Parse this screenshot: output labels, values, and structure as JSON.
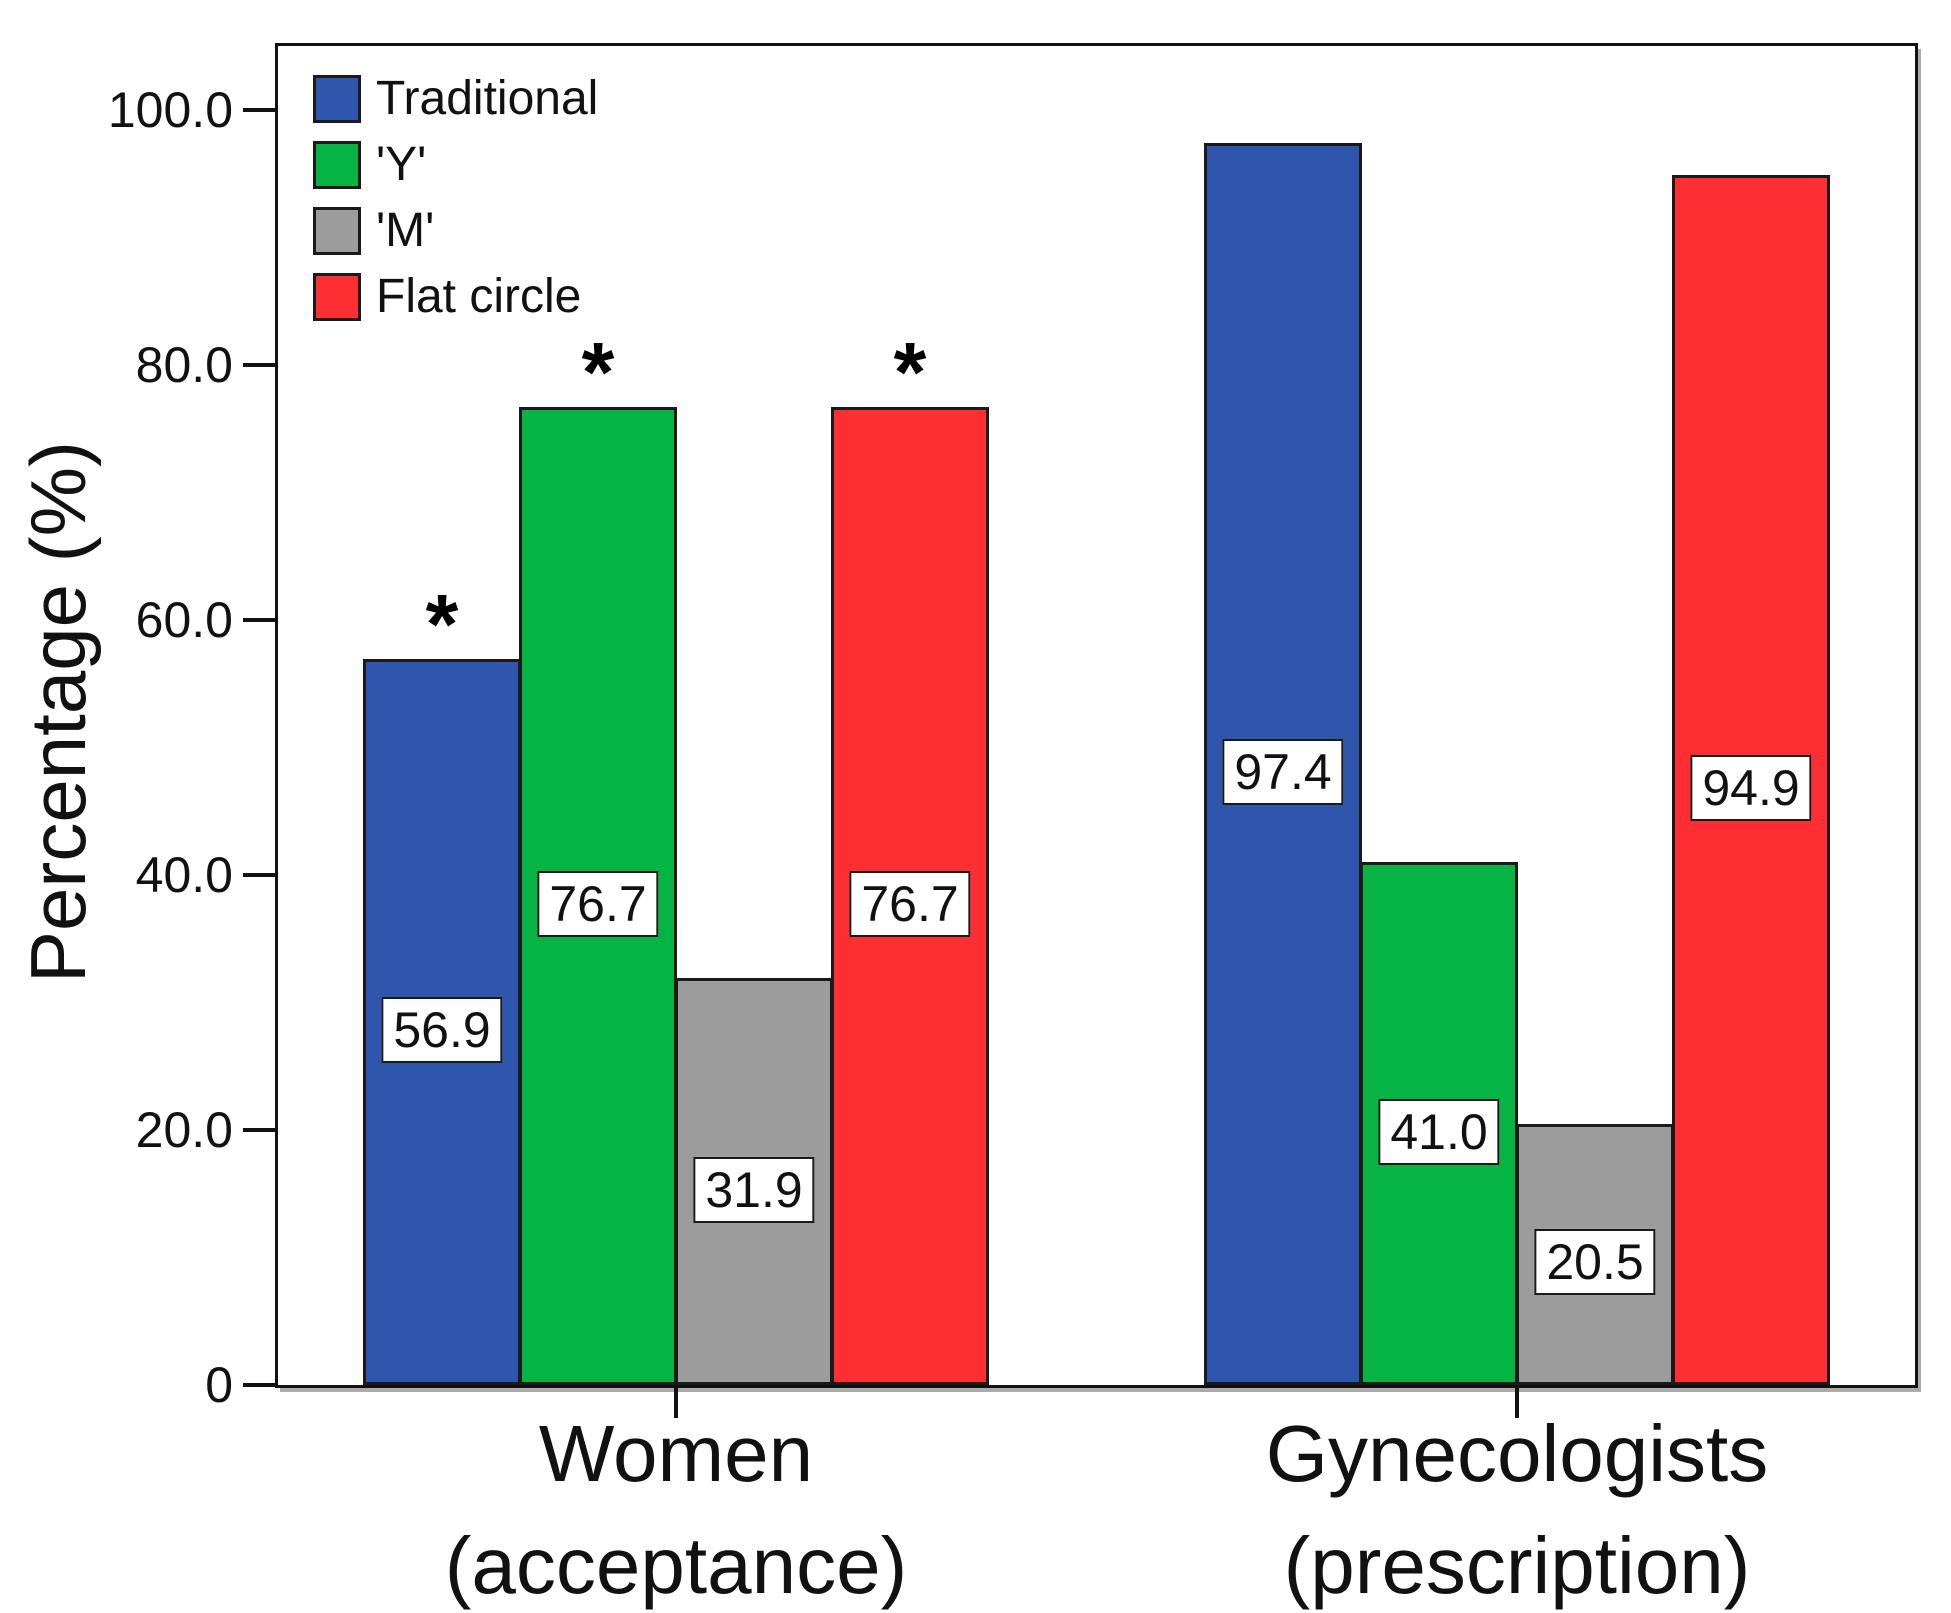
{
  "chart_data": {
    "type": "bar",
    "title": "",
    "ylabel": "Percentage (%)",
    "xlabel": "",
    "ylim": [
      0,
      105
    ],
    "grid": false,
    "legend_position": "top-left",
    "significance_marker": "*",
    "bar_edge_color": "#1a1a1a",
    "yticks": [
      {
        "value": 100,
        "label": "100.0"
      },
      {
        "value": 80,
        "label": "80.0"
      },
      {
        "value": 60,
        "label": "60.0"
      },
      {
        "value": 40,
        "label": "40.0"
      },
      {
        "value": 20,
        "label": "20.0"
      },
      {
        "value": 0,
        "label": "0"
      }
    ],
    "categories": [
      {
        "label_line1": "Women",
        "label_line2": "(acceptance)"
      },
      {
        "label_line1": "Gynecologists",
        "label_line2": "(prescription)"
      }
    ],
    "series": [
      {
        "name": "Traditional",
        "color": "#2e56ac",
        "values": [
          56.9,
          97.4
        ],
        "value_labels": [
          "56.9",
          "97.4"
        ],
        "starred": [
          true,
          false
        ]
      },
      {
        "name": "'Y'",
        "color": "#06b445",
        "values": [
          76.7,
          41.0
        ],
        "value_labels": [
          "76.7",
          "41.0"
        ],
        "starred": [
          true,
          false
        ]
      },
      {
        "name": "'M'",
        "color": "#9c9c9c",
        "values": [
          31.9,
          20.5
        ],
        "value_labels": [
          "31.9",
          "20.5"
        ],
        "starred": [
          false,
          false
        ]
      },
      {
        "name": "Flat circle",
        "color": "#fd2f33",
        "values": [
          76.7,
          94.9
        ],
        "value_labels": [
          "76.7",
          "94.9"
        ],
        "starred": [
          true,
          false
        ]
      }
    ]
  }
}
